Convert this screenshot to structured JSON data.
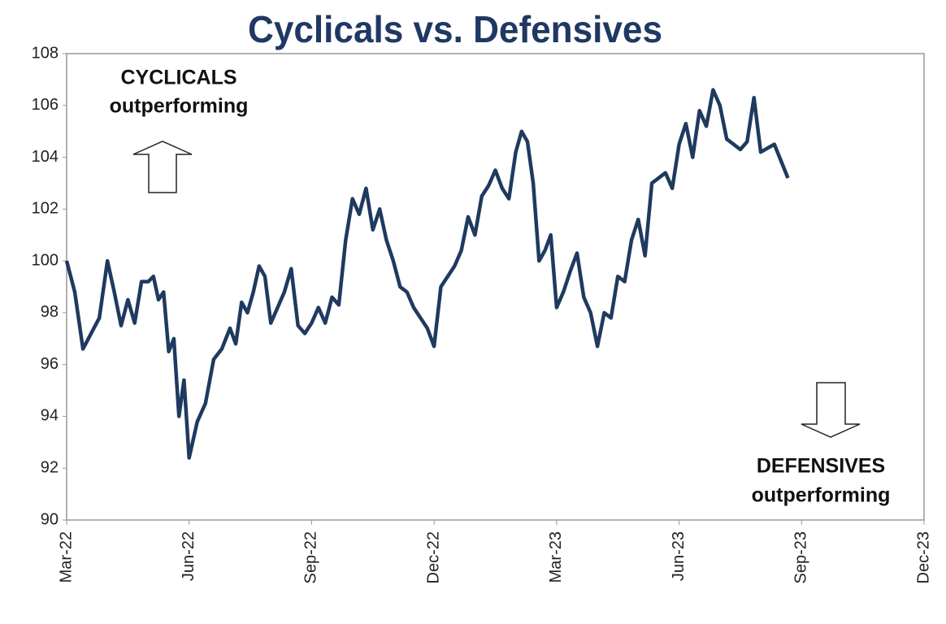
{
  "chart_data": {
    "type": "line",
    "title": "Cyclicals vs. Defensives",
    "annotations": [
      {
        "lines": [
          "CYCLICALS",
          "outperforming"
        ]
      },
      {
        "lines": [
          "DEFENSIVES",
          "outperforming"
        ]
      }
    ],
    "x": [
      "2022-03",
      "2022-03",
      "2022-03",
      "2022-03",
      "2022-03",
      "2022-04",
      "2022-04",
      "2022-04",
      "2022-04",
      "2022-04",
      "2022-04",
      "2022-05",
      "2022-05",
      "2022-05",
      "2022-05",
      "2022-05",
      "2022-05",
      "2022-05",
      "2022-05",
      "2022-06",
      "2022-06",
      "2022-06",
      "2022-06",
      "2022-06",
      "2022-07",
      "2022-07",
      "2022-07",
      "2022-07",
      "2022-07",
      "2022-07",
      "2022-07",
      "2022-08",
      "2022-08",
      "2022-08",
      "2022-08",
      "2022-08",
      "2022-08",
      "2022-09",
      "2022-09",
      "2022-09",
      "2022-09",
      "2022-09",
      "2022-09",
      "2022-10",
      "2022-10",
      "2022-10",
      "2022-10",
      "2022-10",
      "2022-10",
      "2022-11",
      "2022-11",
      "2022-11",
      "2022-11",
      "2022-11",
      "2022-11",
      "2022-12",
      "2022-12",
      "2022-12",
      "2022-12",
      "2022-12",
      "2022-12",
      "2023-01",
      "2023-01",
      "2023-01",
      "2023-01",
      "2023-01",
      "2023-01",
      "2023-02",
      "2023-02",
      "2023-02",
      "2023-02",
      "2023-02",
      "2023-02",
      "2023-02",
      "2023-03",
      "2023-03",
      "2023-03",
      "2023-03",
      "2023-03",
      "2023-03",
      "2023-04",
      "2023-04",
      "2023-04",
      "2023-04",
      "2023-04",
      "2023-04",
      "2023-05",
      "2023-05",
      "2023-05",
      "2023-05",
      "2023-05",
      "2023-05",
      "2023-06",
      "2023-06",
      "2023-06",
      "2023-06",
      "2023-06",
      "2023-06",
      "2023-07",
      "2023-07",
      "2023-07",
      "2023-07",
      "2023-07",
      "2023-07",
      "2023-08",
      "2023-08",
      "2023-08"
    ],
    "series": [
      {
        "name": "Cyclicals vs. Defensives",
        "color": "#1f3a5f",
        "values": [
          100,
          98.8,
          96.6,
          97.2,
          97.8,
          100,
          98.8,
          97.5,
          98.5,
          97.6,
          99.2,
          99.2,
          99.4,
          98.5,
          98.8,
          96.5,
          97,
          94,
          95.4,
          92.4,
          93.8,
          94.5,
          96.2,
          96.6,
          97.4,
          96.8,
          98.4,
          98,
          98.8,
          99.8,
          99.4,
          97.6,
          98.2,
          98.8,
          99.7,
          97.5,
          97.2,
          97.6,
          98.2,
          97.6,
          98.6,
          98.3,
          100.8,
          102.4,
          101.8,
          102.8,
          101.2,
          102,
          100.8,
          100,
          99,
          98.8,
          98.2,
          97.8,
          97.4,
          96.7,
          99,
          99.4,
          99.8,
          100.4,
          101.7,
          101,
          102.5,
          102.9,
          103.5,
          102.8,
          102.4,
          104.2,
          105,
          104.6,
          103,
          100,
          100.4,
          101,
          98.2,
          98.8,
          99.6,
          100.3,
          98.6,
          98,
          96.7,
          98,
          97.8,
          99.4,
          99.2,
          100.8,
          101.6,
          100.2,
          103,
          103.2,
          103.4,
          102.8,
          104.5,
          105.3,
          104,
          105.8,
          105.2,
          106.6,
          106,
          104.7,
          104.5,
          104.3,
          104.6,
          106.3,
          104.2,
          104.5,
          103.2
        ]
      }
    ],
    "xlim": [
      "2022-03",
      "2023-12"
    ],
    "xticks": [
      {
        "value": "2022-03",
        "label": "Mar-22"
      },
      {
        "value": "2022-06",
        "label": "Jun-22"
      },
      {
        "value": "2022-09",
        "label": "Sep-22"
      },
      {
        "value": "2022-12",
        "label": "Dec-22"
      },
      {
        "value": "2023-03",
        "label": "Mar-23"
      },
      {
        "value": "2023-06",
        "label": "Jun-23"
      },
      {
        "value": "2023-09",
        "label": "Sep-23"
      },
      {
        "value": "2023-12",
        "label": "Dec-23"
      }
    ],
    "ylim": [
      90,
      108
    ],
    "yticks": [
      90,
      92,
      94,
      96,
      98,
      100,
      102,
      104,
      106,
      108
    ],
    "grid": false
  }
}
